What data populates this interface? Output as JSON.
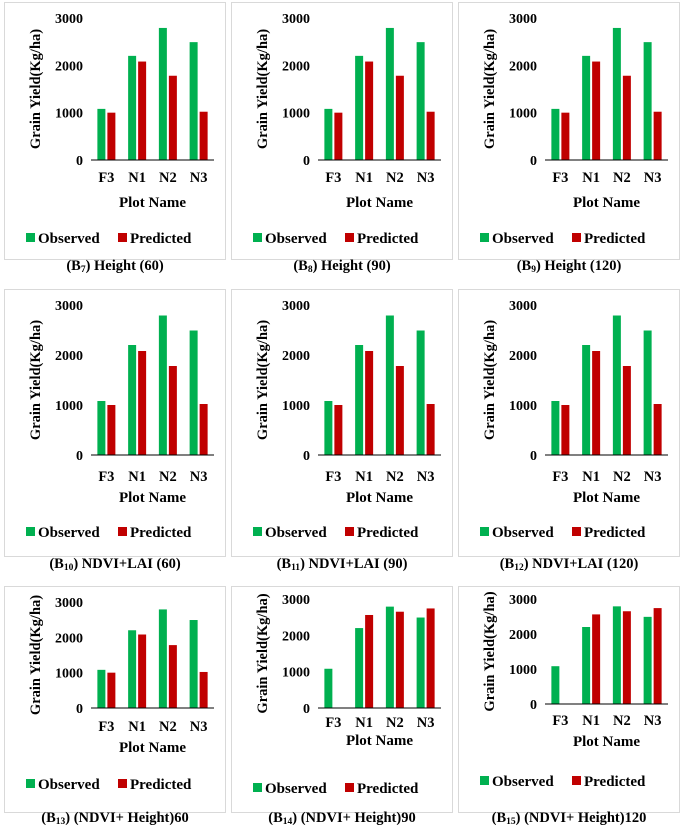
{
  "legend": {
    "observed": "Observed",
    "predicted": "Predicted"
  },
  "colors": {
    "observed": "#00b050",
    "predicted": "#c00000",
    "axis": "#000000",
    "frame": "#d9d9d9"
  },
  "chart_data": [
    {
      "id": "B7",
      "type": "bar",
      "caption": {
        "prefix": "(B",
        "sub": "7",
        "suffix": ") Height (60)"
      },
      "xlabel": "Plot Name",
      "ylabel": "Grain Yield(Kg/ha)",
      "ylim": [
        0,
        3000
      ],
      "yticks": [
        "0",
        "1000",
        "2000",
        "3000"
      ],
      "categories": [
        "F3",
        "N1",
        "N2",
        "N3"
      ],
      "series": [
        {
          "name": "Observed",
          "values": [
            1080,
            2200,
            2790,
            2490
          ]
        },
        {
          "name": "Predicted",
          "values": [
            1000,
            2080,
            1780,
            1020
          ]
        }
      ]
    },
    {
      "id": "B8",
      "type": "bar",
      "caption": {
        "prefix": "(B",
        "sub": "8",
        "suffix": ") Height (90)"
      },
      "xlabel": "Plot Name",
      "ylabel": "Grain Yield(Kg/ha)",
      "ylim": [
        0,
        3000
      ],
      "yticks": [
        "0",
        "1000",
        "2000",
        "3000"
      ],
      "categories": [
        "F3",
        "N1",
        "N2",
        "N3"
      ],
      "series": [
        {
          "name": "Observed",
          "values": [
            1080,
            2200,
            2790,
            2490
          ]
        },
        {
          "name": "Predicted",
          "values": [
            1000,
            2080,
            1780,
            1020
          ]
        }
      ]
    },
    {
      "id": "B9",
      "type": "bar",
      "caption": {
        "prefix": "(B",
        "sub": "9",
        "suffix": ") Height (120)"
      },
      "xlabel": "Plot Name",
      "ylabel": "Grain Yield(Kg/ha)",
      "ylim": [
        0,
        3000
      ],
      "yticks": [
        "0",
        "1000",
        "2000",
        "3000"
      ],
      "categories": [
        "F3",
        "N1",
        "N2",
        "N3"
      ],
      "series": [
        {
          "name": "Observed",
          "values": [
            1080,
            2200,
            2790,
            2490
          ]
        },
        {
          "name": "Predicted",
          "values": [
            1000,
            2080,
            1780,
            1020
          ]
        }
      ]
    },
    {
      "id": "B10",
      "type": "bar",
      "caption": {
        "prefix": "(B",
        "sub": "10",
        "suffix": ") NDVI+LAI (60)"
      },
      "xlabel": "Plot Name",
      "ylabel": "Grain Yield(Kg/ha)",
      "ylim": [
        0,
        3000
      ],
      "yticks": [
        "0",
        "1000",
        "2000",
        "3000"
      ],
      "categories": [
        "F3",
        "N1",
        "N2",
        "N3"
      ],
      "series": [
        {
          "name": "Observed",
          "values": [
            1080,
            2200,
            2790,
            2490
          ]
        },
        {
          "name": "Predicted",
          "values": [
            1000,
            2080,
            1780,
            1020
          ]
        }
      ]
    },
    {
      "id": "B11",
      "type": "bar",
      "caption": {
        "prefix": "(B",
        "sub": "11",
        "suffix": ") NDVI+LAI (90)"
      },
      "xlabel": "Plot Name",
      "ylabel": "Grain Yield(Kg/ha)",
      "ylim": [
        0,
        3000
      ],
      "yticks": [
        "0",
        "1000",
        "2000",
        "3000"
      ],
      "categories": [
        "F3",
        "N1",
        "N2",
        "N3"
      ],
      "series": [
        {
          "name": "Observed",
          "values": [
            1080,
            2200,
            2790,
            2490
          ]
        },
        {
          "name": "Predicted",
          "values": [
            1000,
            2080,
            1780,
            1020
          ]
        }
      ]
    },
    {
      "id": "B12",
      "type": "bar",
      "caption": {
        "prefix": "(B",
        "sub": "12",
        "suffix": ") NDVI+LAI (120)"
      },
      "xlabel": "Plot Name",
      "ylabel": "Grain Yield(Kg/ha)",
      "ylim": [
        0,
        3000
      ],
      "yticks": [
        "0",
        "1000",
        "2000",
        "3000"
      ],
      "categories": [
        "F3",
        "N1",
        "N2",
        "N3"
      ],
      "series": [
        {
          "name": "Observed",
          "values": [
            1080,
            2200,
            2790,
            2490
          ]
        },
        {
          "name": "Predicted",
          "values": [
            1000,
            2080,
            1780,
            1020
          ]
        }
      ]
    },
    {
      "id": "B13",
      "type": "bar",
      "caption": {
        "prefix": "(B",
        "sub": "13",
        "suffix": ") (NDVI+ Height)60"
      },
      "xlabel": "Plot Name",
      "ylabel": "Grain Yield(Kg/ha)",
      "ylim": [
        0,
        3000
      ],
      "yticks": [
        "0",
        "1000",
        "2000",
        "3000"
      ],
      "categories": [
        "F3",
        "N1",
        "N2",
        "N3"
      ],
      "series": [
        {
          "name": "Observed",
          "values": [
            1080,
            2200,
            2790,
            2490
          ]
        },
        {
          "name": "Predicted",
          "values": [
            1000,
            2080,
            1780,
            1020
          ]
        }
      ]
    },
    {
      "id": "B14",
      "type": "bar",
      "caption": {
        "prefix": "(B",
        "sub": "14",
        "suffix": ") (NDVI+ Height)90"
      },
      "xlabel": "Plot Name",
      "ylabel": "Grain Yield(Kg/ha)",
      "ylim": [
        0,
        3000
      ],
      "yticks": [
        "0",
        "1000",
        "2000",
        "3000"
      ],
      "categories": [
        "F3",
        "N1",
        "N2",
        "N3"
      ],
      "series": [
        {
          "name": "Observed",
          "values": [
            1080,
            2200,
            2790,
            2490
          ]
        },
        {
          "name": "Predicted",
          "values": [
            0,
            2560,
            2650,
            2740
          ]
        }
      ]
    },
    {
      "id": "B15",
      "type": "bar",
      "caption": {
        "prefix": "(B",
        "sub": "15",
        "suffix": ") (NDVI+ Height)120"
      },
      "xlabel": "Plot Name",
      "ylabel": "Grain Yield(Kg/ha)",
      "ylim": [
        0,
        3000
      ],
      "yticks": [
        "0",
        "1000",
        "2000",
        "3000"
      ],
      "categories": [
        "F3",
        "N1",
        "N2",
        "N3"
      ],
      "series": [
        {
          "name": "Observed",
          "values": [
            1080,
            2200,
            2790,
            2490
          ]
        },
        {
          "name": "Predicted",
          "values": [
            0,
            2560,
            2650,
            2740
          ]
        }
      ]
    }
  ]
}
